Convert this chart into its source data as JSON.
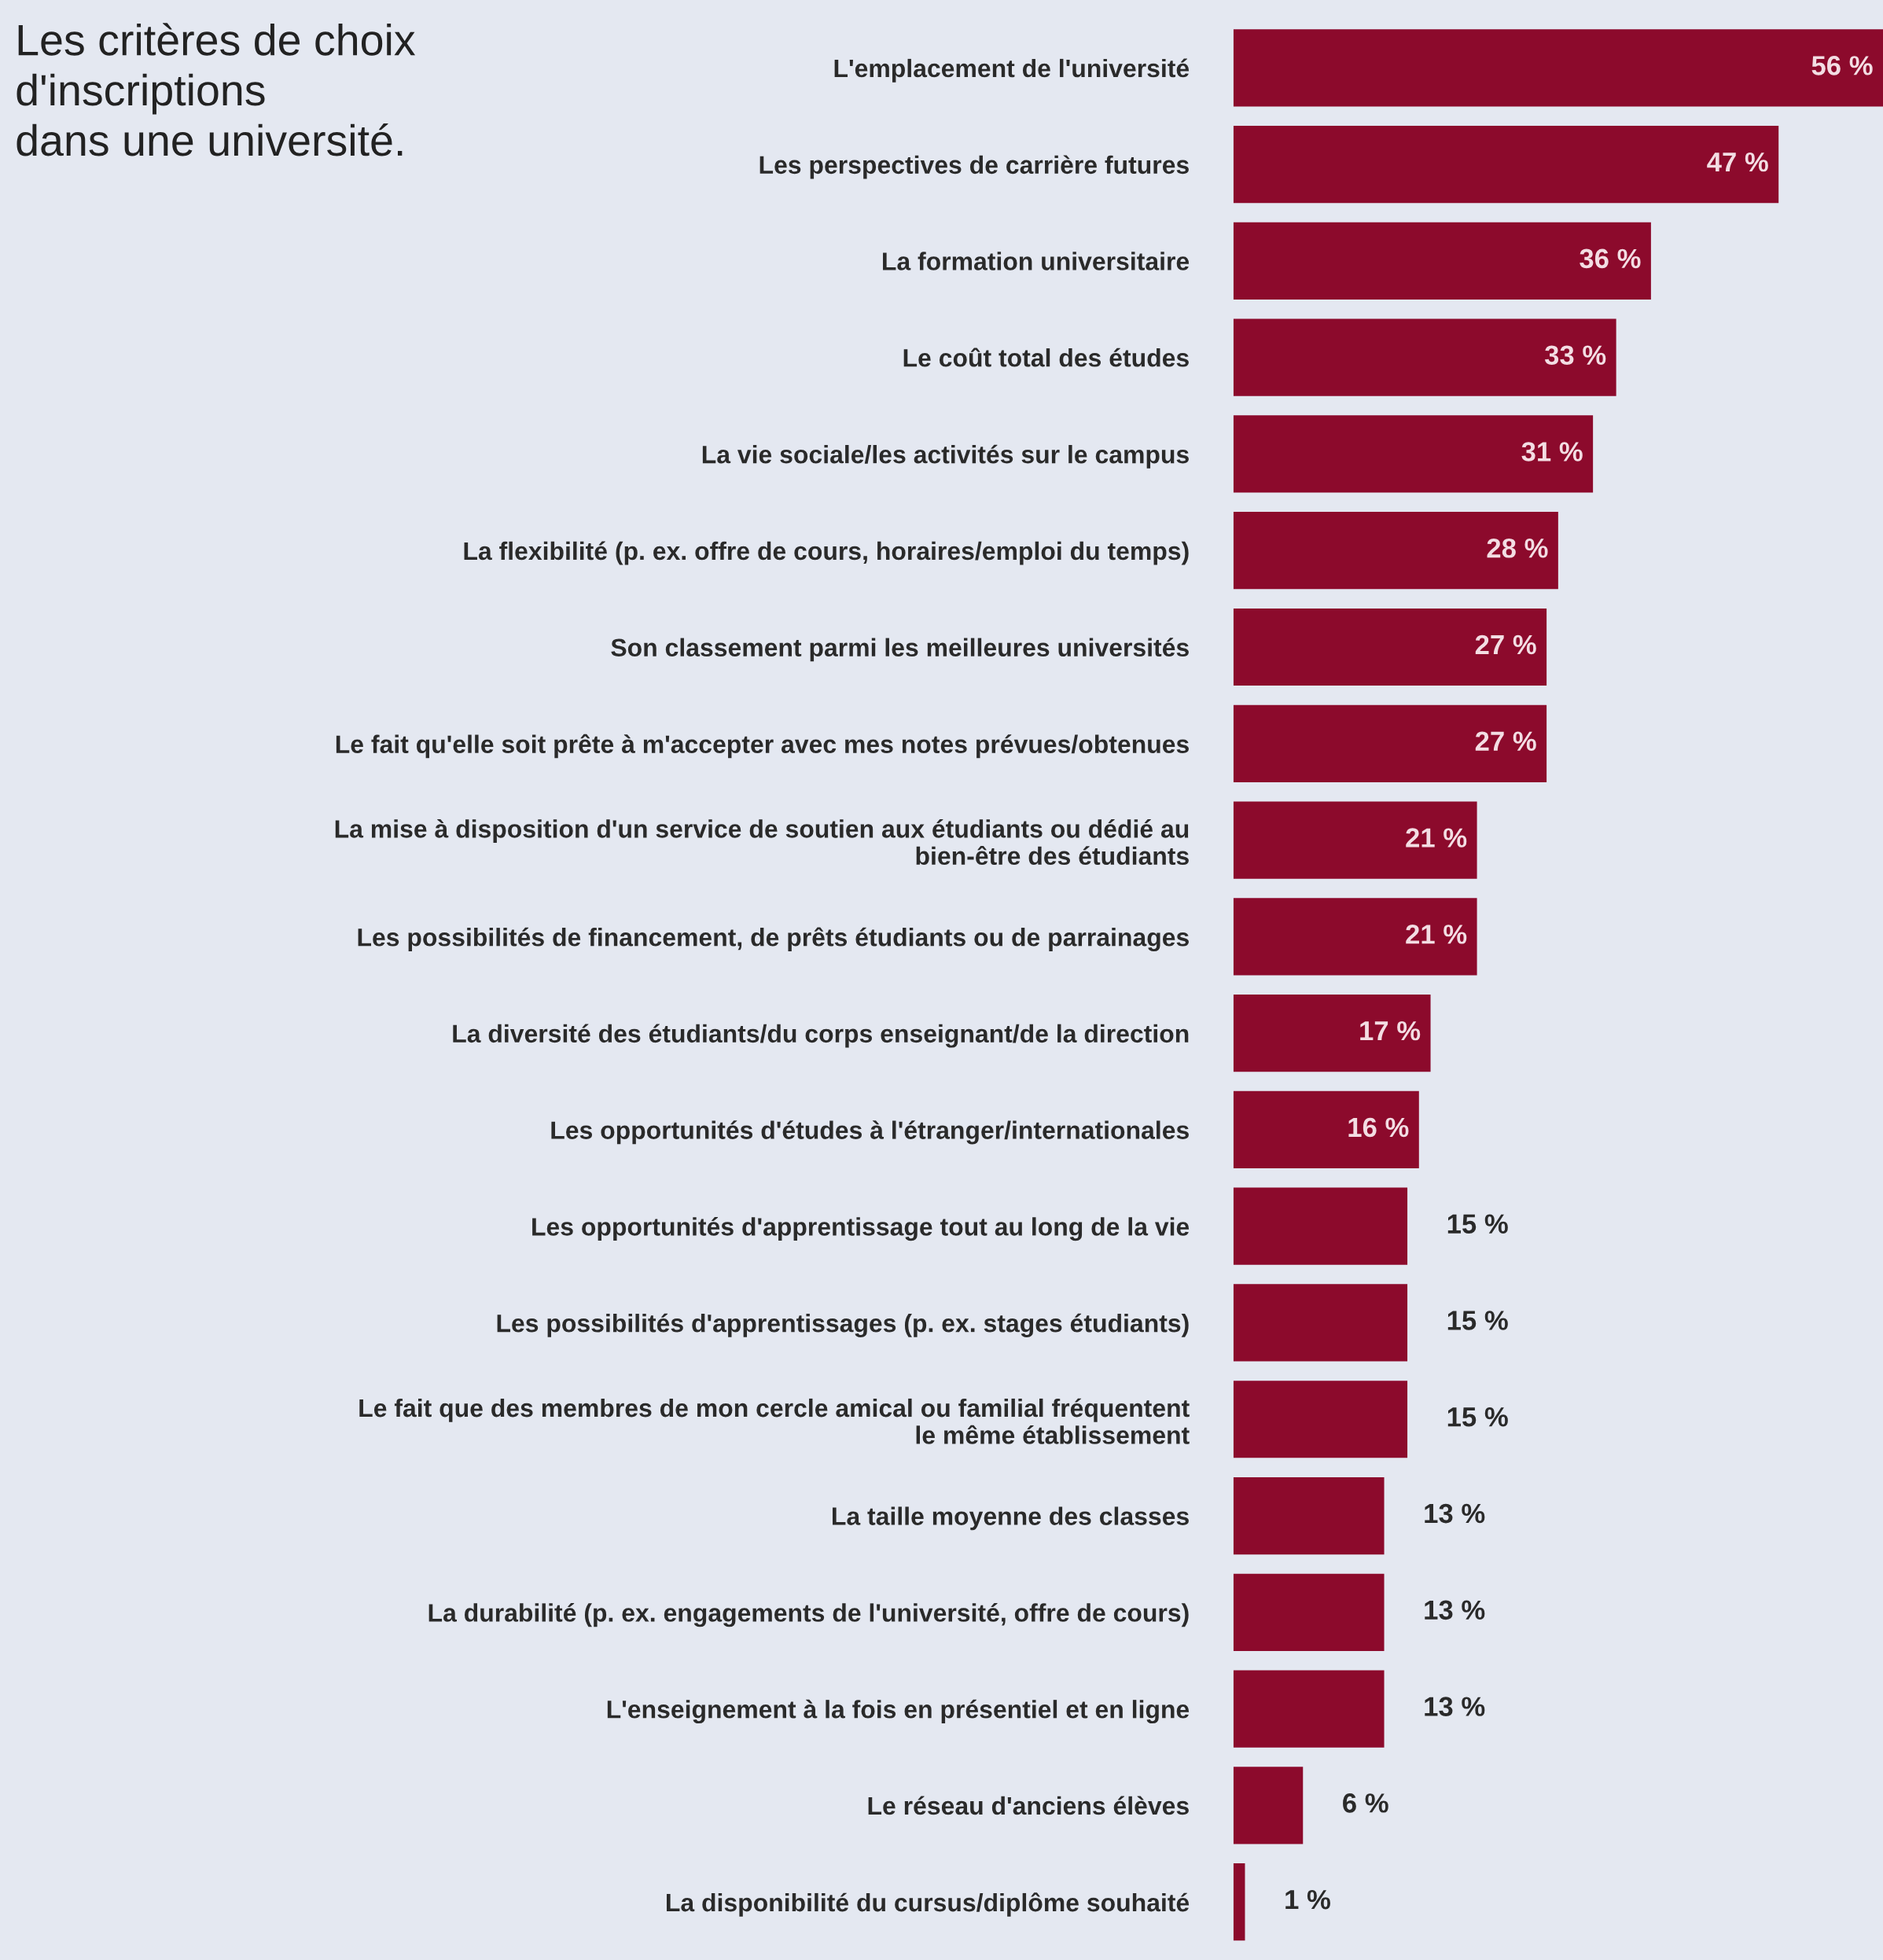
{
  "chart_data": {
    "type": "bar",
    "orientation": "horizontal",
    "title": "Les critères de choix\nd'inscriptions\ndans une université.",
    "categories": [
      "L'emplacement de l'université",
      "Les perspectives de carrière futures",
      "La formation universitaire",
      "Le coût total des études",
      "La vie sociale/les activités sur le campus",
      "La flexibilité (p. ex. offre de cours, horaires/emploi du temps)",
      "Son classement parmi les meilleures universités",
      "Le fait qu'elle soit prête à m'accepter avec mes notes prévues/obtenues",
      "La mise à disposition d'un service de soutien aux étudiants ou dédié au\nbien-être des étudiants",
      "Les possibilités de financement, de prêts étudiants ou de parrainages",
      "La diversité des étudiants/du corps enseignant/de la direction",
      "Les opportunités d'études à l'étranger/internationales",
      "Les opportunités d'apprentissage tout au long de la vie",
      "Les possibilités d'apprentissages (p. ex. stages étudiants)",
      "Le fait que des membres de mon cercle amical ou familial fréquentent\nle même établissement",
      "La taille moyenne des classes",
      "La durabilité (p. ex. engagements de l'université, offre de cours)",
      "L'enseignement à la fois en présentiel et en ligne",
      "Le réseau d'anciens élèves",
      "La disponibilité du cursus/diplôme souhaité"
    ],
    "values": [
      56,
      47,
      36,
      33,
      31,
      28,
      27,
      27,
      21,
      21,
      17,
      16,
      15,
      15,
      15,
      13,
      13,
      13,
      6,
      1
    ],
    "value_labels": [
      "56 %",
      "47 %",
      "36 %",
      "33 %",
      "31 %",
      "28 %",
      "27 %",
      "27 %",
      "21 %",
      "21 %",
      "17 %",
      "16 %",
      "15 %",
      "15 %",
      "15 %",
      "13 %",
      "13 %",
      "13 %",
      "6 %",
      "1 %"
    ],
    "color": "#8c0a2c",
    "grid": false,
    "legend": false
  }
}
